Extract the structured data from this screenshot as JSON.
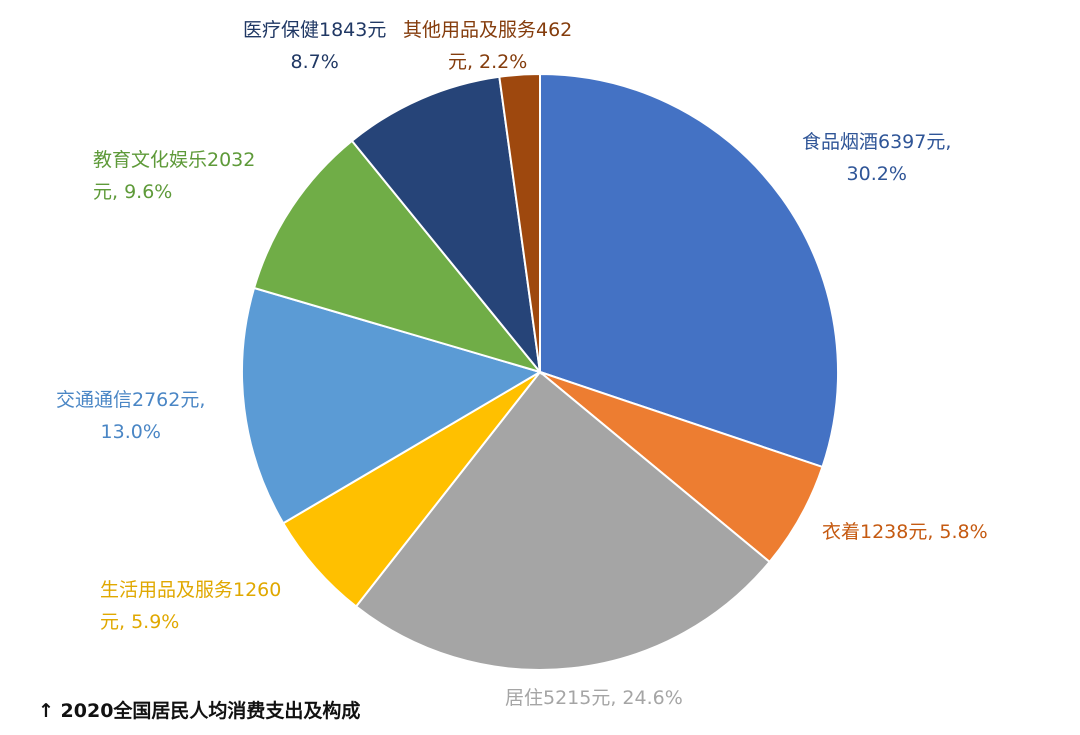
{
  "chart_data": {
    "type": "pie",
    "start_angle_deg": 0,
    "direction": "clockwise",
    "caption": "↑ 2020全国居民人均消费支出及构成",
    "slices": [
      {
        "name": "食品烟酒",
        "value": 6397,
        "percent": 30.2,
        "color": "#4472C4",
        "label_line1": "食品烟酒6397元,",
        "label_line2": "30.2%",
        "label_color": "#2F5597"
      },
      {
        "name": "衣着",
        "value": 1238,
        "percent": 5.8,
        "color": "#ED7D31",
        "label_line1": "衣着1238元, 5.8%",
        "label_line2": "",
        "label_color": "#C55A11"
      },
      {
        "name": "居住",
        "value": 5215,
        "percent": 24.6,
        "color": "#A5A5A5",
        "label_line1": "居住5215元, 24.6%",
        "label_line2": "",
        "label_color": "#A5A5A5"
      },
      {
        "name": "生活用品及服务",
        "value": 1260,
        "percent": 5.9,
        "color": "#FFC000",
        "label_line1": "生活用品及服务1260",
        "label_line2": "元, 5.9%",
        "label_color": "#E0A800"
      },
      {
        "name": "交通通信",
        "value": 2762,
        "percent": 13.0,
        "color": "#5B9BD5",
        "label_line1": "交通通信2762元,",
        "label_line2": "13.0%",
        "label_color": "#4A86C5"
      },
      {
        "name": "教育文化娱乐",
        "value": 2032,
        "percent": 9.6,
        "color": "#70AD47",
        "label_line1": "教育文化娱乐2032",
        "label_line2": "元, 9.6%",
        "label_color": "#5E9A39"
      },
      {
        "name": "医疗保健",
        "value": 1843,
        "percent": 8.7,
        "color": "#264478",
        "label_line1": "医疗保健1843元",
        "label_line2": "8.7%",
        "label_color": "#203864"
      },
      {
        "name": "其他用品及服务",
        "value": 462,
        "percent": 2.2,
        "color": "#9E480E",
        "label_line1": "其他用品及服务462",
        "label_line2": "元, 2.2%",
        "label_color": "#843C0C"
      }
    ]
  }
}
